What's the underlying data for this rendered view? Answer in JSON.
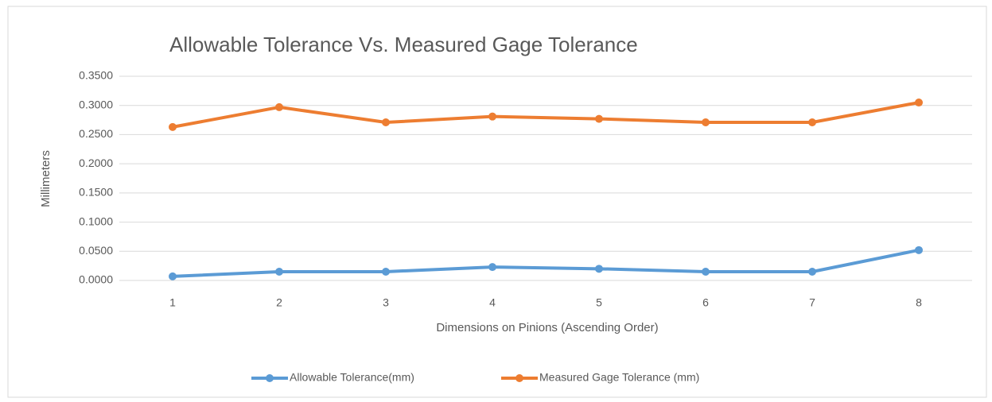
{
  "chart_data": {
    "type": "line",
    "title": "Allowable Tolerance Vs. Measured Gage Tolerance",
    "x_label": "Dimensions on Pinions (Ascending Order)",
    "y_label": "Millimeters",
    "categories": [
      "1",
      "2",
      "3",
      "4",
      "5",
      "6",
      "7",
      "8"
    ],
    "series": [
      {
        "name": "Allowable Tolerance(mm)",
        "color": "#5b9bd5",
        "values": [
          0.007,
          0.015,
          0.015,
          0.023,
          0.02,
          0.015,
          0.015,
          0.052
        ]
      },
      {
        "name": "Measured Gage Tolerance (mm)",
        "color": "#ed7d31",
        "values": [
          0.263,
          0.297,
          0.271,
          0.281,
          0.277,
          0.271,
          0.271,
          0.305
        ]
      }
    ],
    "ylim": [
      0,
      0.35
    ],
    "yticks": [
      {
        "value": 0,
        "label": "0.0000"
      },
      {
        "value": 0.05,
        "label": "0.0500"
      },
      {
        "value": 0.1,
        "label": "0.1000"
      },
      {
        "value": 0.15,
        "label": "0.1500"
      },
      {
        "value": 0.2,
        "label": "0.2000"
      },
      {
        "value": 0.25,
        "label": "0.2500"
      },
      {
        "value": 0.3,
        "label": "0.3000"
      },
      {
        "value": 0.35,
        "label": "0.3500"
      }
    ],
    "grid": true,
    "legend": "bottom"
  }
}
